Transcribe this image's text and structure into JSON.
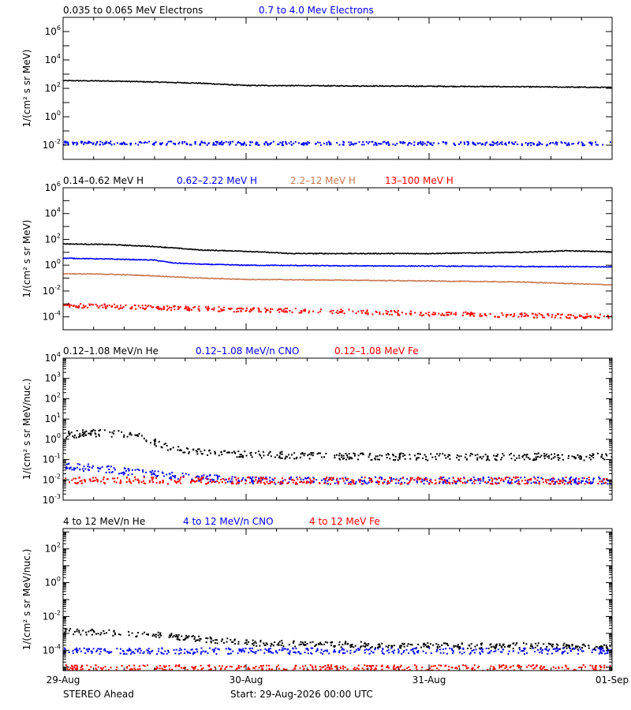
{
  "footer": {
    "spacecraft": "STEREO Ahead",
    "start": "Start: 29-Aug-2026 00:00 UTC"
  },
  "x_axis": {
    "ticks": [
      {
        "label": "29-Aug",
        "day": 0
      },
      {
        "label": "30-Aug",
        "day": 1
      },
      {
        "label": "31-Aug",
        "day": 2
      },
      {
        "label": "01-Sep",
        "day": 3
      }
    ]
  },
  "chart_data": [
    {
      "id": "electrons",
      "type": "scatter",
      "ylabel": "1/(cm² s sr MeV)",
      "yscale": "log",
      "ylim_exp": [
        -3,
        7
      ],
      "ytick_exps": [
        -2,
        0,
        2,
        4,
        6
      ],
      "xlim_days": [
        0,
        3
      ],
      "series": [
        {
          "name": "0.035 to 0.065 MeV Electrons",
          "color": "#000000",
          "style": "line",
          "values": [
            [
              0,
              350
            ],
            [
              0.25,
              330
            ],
            [
              0.5,
              280
            ],
            [
              0.75,
              230
            ],
            [
              1.0,
              160
            ],
            [
              1.5,
              150
            ],
            [
              2.0,
              140
            ],
            [
              2.5,
              130
            ],
            [
              3.0,
              115
            ]
          ]
        },
        {
          "name": "0.7 to 4.0 Mev Electrons",
          "color": "#0000ff",
          "style": "dots",
          "values": [
            [
              0,
              0.016
            ],
            [
              1,
              0.015
            ],
            [
              2,
              0.015
            ],
            [
              3,
              0.014
            ]
          ]
        }
      ]
    },
    {
      "id": "protons",
      "type": "scatter",
      "ylabel": "1/(cm² s sr MeV)",
      "yscale": "log",
      "ylim_exp": [
        -5,
        6
      ],
      "ytick_exps": [
        -4,
        -2,
        0,
        2,
        4,
        6
      ],
      "xlim_days": [
        0,
        3
      ],
      "series": [
        {
          "name": "0.14–0.62 MeV H",
          "color": "#000000",
          "style": "line",
          "values": [
            [
              0,
              45
            ],
            [
              0.25,
              40
            ],
            [
              0.5,
              28
            ],
            [
              0.6,
              22
            ],
            [
              0.75,
              15
            ],
            [
              1.0,
              12
            ],
            [
              1.25,
              8
            ],
            [
              1.5,
              8
            ],
            [
              2.0,
              8
            ],
            [
              2.5,
              10
            ],
            [
              2.75,
              13
            ],
            [
              3.0,
              11
            ]
          ]
        },
        {
          "name": "0.62–2.22 MeV H",
          "color": "#0000ff",
          "style": "line",
          "values": [
            [
              0,
              3.5
            ],
            [
              0.25,
              3.0
            ],
            [
              0.5,
              2.5
            ],
            [
              0.6,
              1.5
            ],
            [
              0.75,
              1.2
            ],
            [
              1.0,
              1.0
            ],
            [
              1.5,
              0.9
            ],
            [
              2.0,
              0.85
            ],
            [
              2.5,
              0.8
            ],
            [
              3.0,
              0.75
            ]
          ]
        },
        {
          "name": "2.2–12 MeV H",
          "color": "#c87850",
          "style": "line",
          "values": [
            [
              0,
              0.22
            ],
            [
              0.25,
              0.2
            ],
            [
              0.5,
              0.15
            ],
            [
              0.75,
              0.1
            ],
            [
              1.0,
              0.08
            ],
            [
              1.5,
              0.07
            ],
            [
              2.0,
              0.06
            ],
            [
              2.5,
              0.05
            ],
            [
              3.0,
              0.03
            ]
          ]
        },
        {
          "name": "13–100 MeV H",
          "color": "#ff0000",
          "style": "dots",
          "values": [
            [
              0,
              0.0009
            ],
            [
              0.5,
              0.0006
            ],
            [
              1.0,
              0.0004
            ],
            [
              1.5,
              0.0003
            ],
            [
              2.0,
              0.0002
            ],
            [
              2.5,
              0.00015
            ],
            [
              3.0,
              0.00012
            ]
          ]
        }
      ]
    },
    {
      "id": "heavy-low",
      "type": "scatter",
      "ylabel": "1/(cm² s sr MeV/nuc.)",
      "yscale": "log",
      "ylim_exp": [
        -3,
        4
      ],
      "ytick_exps": [
        -3,
        -2,
        -1,
        0,
        1,
        2,
        3,
        4
      ],
      "xlim_days": [
        0,
        3
      ],
      "series": [
        {
          "name": "0.12–1.08 MeV/n He",
          "color": "#000000",
          "style": "dots",
          "values": [
            [
              0,
              1.8
            ],
            [
              0.15,
              2.2
            ],
            [
              0.3,
              2.0
            ],
            [
              0.45,
              1.2
            ],
            [
              0.55,
              0.5
            ],
            [
              0.7,
              0.3
            ],
            [
              1.0,
              0.2
            ],
            [
              1.5,
              0.15
            ],
            [
              2.0,
              0.15
            ],
            [
              2.5,
              0.15
            ],
            [
              3.0,
              0.15
            ]
          ]
        },
        {
          "name": "0.12–1.08 MeV/n CNO",
          "color": "#0000ff",
          "style": "dots",
          "values": [
            [
              0,
              0.05
            ],
            [
              0.2,
              0.04
            ],
            [
              0.5,
              0.02
            ],
            [
              1.0,
              0.01
            ],
            [
              2.0,
              0.01
            ],
            [
              3.0,
              0.01
            ]
          ]
        },
        {
          "name": "0.12–1.08 MeV Fe",
          "color": "#ff0000",
          "style": "dots",
          "values": [
            [
              0,
              0.01
            ],
            [
              1.0,
              0.01
            ],
            [
              2.0,
              0.01
            ],
            [
              3.0,
              0.01
            ]
          ]
        }
      ]
    },
    {
      "id": "heavy-high",
      "type": "scatter",
      "ylabel": "1/(cm² s sr MeV/nuc.)",
      "yscale": "log",
      "ylim_exp": [
        -5.2,
        3.2
      ],
      "ytick_exps": [
        -4,
        -2,
        0,
        2
      ],
      "xlim_days": [
        0,
        3
      ],
      "series": [
        {
          "name": "4 to 12 MeV/n He",
          "color": "#000000",
          "style": "dots",
          "values": [
            [
              0,
              0.0015
            ],
            [
              0.25,
              0.0012
            ],
            [
              0.5,
              0.0009
            ],
            [
              0.75,
              0.0005
            ],
            [
              1.0,
              0.0003
            ],
            [
              1.5,
              0.00025
            ],
            [
              2.0,
              0.0002
            ],
            [
              2.5,
              0.0002
            ],
            [
              3.0,
              0.00018
            ]
          ]
        },
        {
          "name": "4 to 12 MeV/n CNO",
          "color": "#0000ff",
          "style": "dots",
          "values": [
            [
              0,
              0.0001
            ],
            [
              1.0,
              0.0001
            ],
            [
              2.0,
              0.0001
            ],
            [
              3.0,
              0.0001
            ]
          ]
        },
        {
          "name": "4 to 12 MeV Fe",
          "color": "#ff0000",
          "style": "dots",
          "values": [
            [
              0.5,
              1e-05
            ],
            [
              1.5,
              1e-05
            ],
            [
              2.5,
              1e-05
            ]
          ]
        }
      ]
    }
  ]
}
